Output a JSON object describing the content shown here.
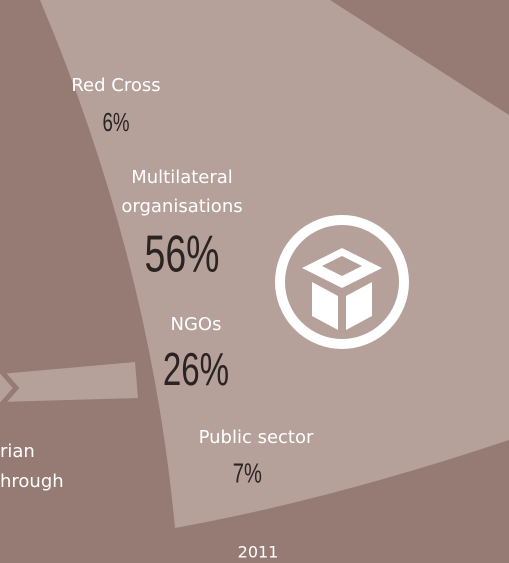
{
  "segments": [
    {
      "label": [
        "Red Cross"
      ],
      "share": "6%"
    },
    {
      "label": [
        "Multilateral",
        "organisations"
      ],
      "share": "56%"
    },
    {
      "label": [
        "NGOs"
      ],
      "share": "26%"
    },
    {
      "label": [
        "Public sector"
      ],
      "share": "7%"
    }
  ],
  "left_text": [
    "rian",
    "hrough"
  ],
  "year": "2011"
}
